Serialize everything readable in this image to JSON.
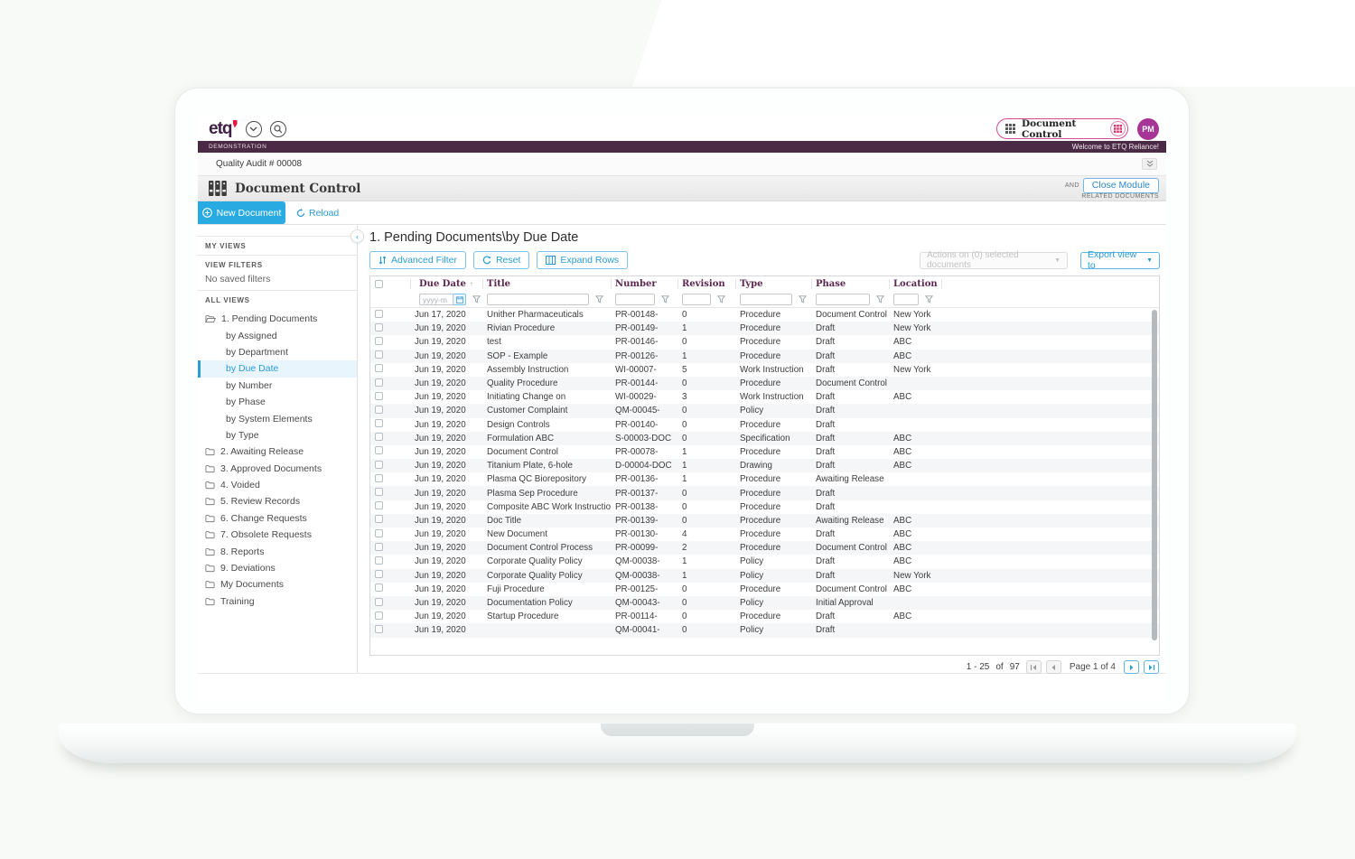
{
  "colors": {
    "accent_blue": "#29abe2",
    "link_blue": "#2b9cd8",
    "brand_plum": "#4a2a44",
    "table_header_text": "#5c2750",
    "avatar_magenta": "#a63597",
    "logo_red": "#e8193c",
    "pill_pink": "#d84a93"
  },
  "topbar": {
    "logo_text": "etq",
    "module_selector_label": "Document Control",
    "avatar_initials": "PM"
  },
  "env_bar": {
    "left_text": "DEMONSTRATION",
    "right_text": "Welcome to ETQ Reliance!"
  },
  "context_bar": {
    "title": "Quality Audit # 00008"
  },
  "module_header": {
    "title": "Document Control",
    "overflow_top": "AND",
    "overflow_bottom": "RELATED DOCUMENTS",
    "close_button": "Close Module"
  },
  "action_bar": {
    "new_document": "New Document",
    "reload": "Reload"
  },
  "sidebar": {
    "my_views": "MY VIEWS",
    "view_filters": "VIEW FILTERS",
    "no_saved_filters": "No saved filters",
    "all_views": "ALL VIEWS",
    "tree": [
      {
        "label": "1. Pending Documents",
        "icon": "folder-open",
        "child": false,
        "selected": false
      },
      {
        "label": "by Assigned",
        "child": true,
        "selected": false
      },
      {
        "label": "by Department",
        "child": true,
        "selected": false
      },
      {
        "label": "by Due Date",
        "child": true,
        "selected": true
      },
      {
        "label": "by Number",
        "child": true,
        "selected": false
      },
      {
        "label": "by Phase",
        "child": true,
        "selected": false
      },
      {
        "label": "by System Elements",
        "child": true,
        "selected": false
      },
      {
        "label": "by Type",
        "child": true,
        "selected": false
      },
      {
        "label": "2. Awaiting Release",
        "icon": "folder",
        "child": false,
        "selected": false
      },
      {
        "label": "3. Approved Documents",
        "icon": "folder",
        "child": false,
        "selected": false
      },
      {
        "label": "4. Voided",
        "icon": "folder",
        "child": false,
        "selected": false
      },
      {
        "label": "5. Review Records",
        "icon": "folder",
        "child": false,
        "selected": false
      },
      {
        "label": "6. Change Requests",
        "icon": "folder",
        "child": false,
        "selected": false
      },
      {
        "label": "7. Obsolete Requests",
        "icon": "folder",
        "child": false,
        "selected": false
      },
      {
        "label": "8. Reports",
        "icon": "folder",
        "child": false,
        "selected": false
      },
      {
        "label": "9. Deviations",
        "icon": "folder",
        "child": false,
        "selected": false
      },
      {
        "label": "My Documents",
        "icon": "folder",
        "child": false,
        "selected": false
      },
      {
        "label": "Training",
        "icon": "folder",
        "child": false,
        "selected": false
      }
    ]
  },
  "main": {
    "view_title": "1. Pending Documents\\by Due Date",
    "toolbar": {
      "advanced_filter": "Advanced Filter",
      "reset": "Reset",
      "expand_rows": "Expand Rows",
      "actions_dropdown": "Actions on (0) selected documents",
      "export_button": "Export view to"
    },
    "table": {
      "columns": [
        "Due Date",
        "Title",
        "Number",
        "Revision",
        "Type",
        "Phase",
        "Location"
      ],
      "date_filter_placeholder": "yyyy-m",
      "rows": [
        {
          "date": "Jun 17, 2020",
          "title": "Unither Pharmaceuticals",
          "number": "PR-00148-",
          "revision": "0",
          "type": "Procedure",
          "phase": "Document Control",
          "location": "New York"
        },
        {
          "date": "Jun 19, 2020",
          "title": "Rivian Procedure",
          "number": "PR-00149-",
          "revision": "1",
          "type": "Procedure",
          "phase": "Draft",
          "location": "New York"
        },
        {
          "date": "Jun 19, 2020",
          "title": "test",
          "number": "PR-00146-",
          "revision": "0",
          "type": "Procedure",
          "phase": "Draft",
          "location": "ABC"
        },
        {
          "date": "Jun 19, 2020",
          "title": "SOP - Example",
          "number": "PR-00126-",
          "revision": "1",
          "type": "Procedure",
          "phase": "Draft",
          "location": "ABC"
        },
        {
          "date": "Jun 19, 2020",
          "title": "Assembly Instruction",
          "number": "WI-00007-",
          "revision": "5",
          "type": "Work Instruction",
          "phase": "Draft",
          "location": "New York"
        },
        {
          "date": "Jun 19, 2020",
          "title": "Quality Procedure",
          "number": "PR-00144-",
          "revision": "0",
          "type": "Procedure",
          "phase": "Document Control",
          "location": ""
        },
        {
          "date": "Jun 19, 2020",
          "title": "Initiating Change on",
          "number": "WI-00029-",
          "revision": "3",
          "type": "Work Instruction",
          "phase": "Draft",
          "location": "ABC"
        },
        {
          "date": "Jun 19, 2020",
          "title": "Customer Complaint",
          "number": "QM-00045-",
          "revision": "0",
          "type": "Policy",
          "phase": "Draft",
          "location": ""
        },
        {
          "date": "Jun 19, 2020",
          "title": "Design Controls",
          "number": "PR-00140-",
          "revision": "0",
          "type": "Procedure",
          "phase": "Draft",
          "location": ""
        },
        {
          "date": "Jun 19, 2020",
          "title": "Formulation ABC",
          "number": "S-00003-DOC",
          "revision": "0",
          "type": "Specification",
          "phase": "Draft",
          "location": "ABC"
        },
        {
          "date": "Jun 19, 2020",
          "title": "Document Control",
          "number": "PR-00078-",
          "revision": "1",
          "type": "Procedure",
          "phase": "Draft",
          "location": "ABC"
        },
        {
          "date": "Jun 19, 2020",
          "title": "Titanium Plate, 6-hole",
          "number": "D-00004-DOC",
          "revision": "1",
          "type": "Drawing",
          "phase": "Draft",
          "location": "ABC"
        },
        {
          "date": "Jun 19, 2020",
          "title": "Plasma QC Biorepository",
          "number": "PR-00136-",
          "revision": "1",
          "type": "Procedure",
          "phase": "Awaiting Release",
          "location": ""
        },
        {
          "date": "Jun 19, 2020",
          "title": "Plasma Sep Procedure",
          "number": "PR-00137-",
          "revision": "0",
          "type": "Procedure",
          "phase": "Draft",
          "location": ""
        },
        {
          "date": "Jun 19, 2020",
          "title": "Composite ABC Work Instruction",
          "number": "PR-00138-",
          "revision": "0",
          "type": "Procedure",
          "phase": "Draft",
          "location": ""
        },
        {
          "date": "Jun 19, 2020",
          "title": "Doc Title",
          "number": "PR-00139-",
          "revision": "0",
          "type": "Procedure",
          "phase": "Awaiting Release",
          "location": "ABC"
        },
        {
          "date": "Jun 19, 2020",
          "title": "New Document",
          "number": "PR-00130-",
          "revision": "4",
          "type": "Procedure",
          "phase": "Draft",
          "location": "ABC"
        },
        {
          "date": "Jun 19, 2020",
          "title": "Document Control Process",
          "number": "PR-00099-",
          "revision": "2",
          "type": "Procedure",
          "phase": "Document Control",
          "location": "ABC"
        },
        {
          "date": "Jun 19, 2020",
          "title": "Corporate Quality Policy",
          "number": "QM-00038-",
          "revision": "1",
          "type": "Policy",
          "phase": "Draft",
          "location": "ABC"
        },
        {
          "date": "Jun 19, 2020",
          "title": "Corporate Quality Policy",
          "number": "QM-00038-",
          "revision": "1",
          "type": "Policy",
          "phase": "Draft",
          "location": "New York"
        },
        {
          "date": "Jun 19, 2020",
          "title": "Fuji Procedure",
          "number": "PR-00125-",
          "revision": "0",
          "type": "Procedure",
          "phase": "Document Control",
          "location": "ABC"
        },
        {
          "date": "Jun 19, 2020",
          "title": "Documentation Policy",
          "number": "QM-00043-",
          "revision": "0",
          "type": "Policy",
          "phase": "Initial Approval",
          "location": ""
        },
        {
          "date": "Jun 19, 2020",
          "title": "Startup Procedure",
          "number": "PR-00114-",
          "revision": "0",
          "type": "Procedure",
          "phase": "Draft",
          "location": "ABC"
        },
        {
          "date": "Jun 19, 2020",
          "title": "",
          "number": "QM-00041-",
          "revision": "0",
          "type": "Policy",
          "phase": "Draft",
          "location": ""
        }
      ]
    },
    "pagination": {
      "range": "1 - 25",
      "of_word": "of",
      "total": "97",
      "page_label": "Page 1 of 4"
    }
  }
}
